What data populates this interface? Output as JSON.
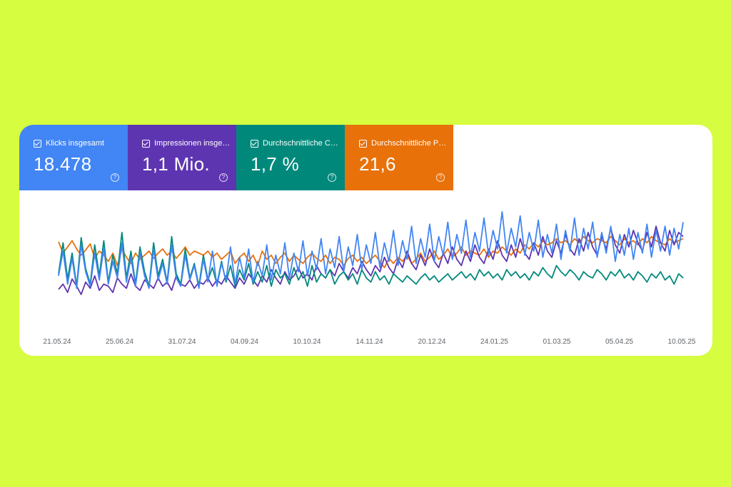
{
  "metrics": [
    {
      "label": "Klicks insgesamt",
      "value": "18.478",
      "color": "#4285f4"
    },
    {
      "label": "Impressionen insgesamt",
      "value": "1,1 Mio.",
      "color": "#5e35b1"
    },
    {
      "label": "Durchschnittliche CTR",
      "value": "1,7 %",
      "color": "#00897b"
    },
    {
      "label": "Durchschnittliche Position",
      "value": "21,6",
      "color": "#e8710a"
    }
  ],
  "help_glyph": "?",
  "chart_data": {
    "type": "line",
    "x_ticks": [
      "21.05.24",
      "25.06.24",
      "31.07.24",
      "04.09.24",
      "10.10.24",
      "14.11.24",
      "20.12.24",
      "24.01.25",
      "01.03.25",
      "05.04.25",
      "10.05.25"
    ],
    "x_range": [
      "21.05.24",
      "20.05.25"
    ],
    "grid": false,
    "legend": "none",
    "series": [
      {
        "color": "#e8710a",
        "values": [
          0.71,
          0.6,
          0.66,
          0.72,
          0.64,
          0.58,
          0.63,
          0.69,
          0.55,
          0.62,
          0.58,
          0.52,
          0.6,
          0.48,
          0.64,
          0.56,
          0.5,
          0.6,
          0.54,
          0.58,
          0.62,
          0.55,
          0.6,
          0.64,
          0.58,
          0.62,
          0.55,
          0.6,
          0.66,
          0.58,
          0.62,
          0.6,
          0.58,
          0.62,
          0.56,
          0.6,
          0.54,
          0.58,
          0.62,
          0.5,
          0.56,
          0.6,
          0.52,
          0.58,
          0.48,
          0.62,
          0.54,
          0.58,
          0.5,
          0.56,
          0.6,
          0.52,
          0.58,
          0.54,
          0.5,
          0.56,
          0.6,
          0.55,
          0.52,
          0.58,
          0.5,
          0.56,
          0.54,
          0.48,
          0.55,
          0.58,
          0.52,
          0.56,
          0.5,
          0.54,
          0.58,
          0.52,
          0.46,
          0.55,
          0.5,
          0.56,
          0.52,
          0.58,
          0.5,
          0.54,
          0.6,
          0.52,
          0.56,
          0.62,
          0.54,
          0.58,
          0.64,
          0.56,
          0.6,
          0.66,
          0.58,
          0.62,
          0.6,
          0.58,
          0.64,
          0.56,
          0.62,
          0.6,
          0.66,
          0.62,
          0.58,
          0.64,
          0.6,
          0.68,
          0.64,
          0.7,
          0.66,
          0.72,
          0.68,
          0.7,
          0.74,
          0.7,
          0.72,
          0.68,
          0.74,
          0.7,
          0.76,
          0.72,
          0.7,
          0.74,
          0.72,
          0.7,
          0.76,
          0.72,
          0.68,
          0.74,
          0.7,
          0.72,
          0.68,
          0.74,
          0.7,
          0.76,
          0.72,
          0.7,
          0.68,
          0.74,
          0.7,
          0.72,
          0.74
        ]
      },
      {
        "color": "#5e35b1",
        "values": [
          0.25,
          0.3,
          0.22,
          0.35,
          0.28,
          0.2,
          0.32,
          0.26,
          0.38,
          0.24,
          0.3,
          0.28,
          0.22,
          0.36,
          0.3,
          0.26,
          0.4,
          0.28,
          0.24,
          0.34,
          0.3,
          0.26,
          0.36,
          0.28,
          0.32,
          0.24,
          0.38,
          0.3,
          0.28,
          0.34,
          0.26,
          0.32,
          0.3,
          0.36,
          0.28,
          0.34,
          0.3,
          0.38,
          0.32,
          0.26,
          0.36,
          0.3,
          0.4,
          0.34,
          0.28,
          0.38,
          0.32,
          0.44,
          0.36,
          0.3,
          0.42,
          0.34,
          0.38,
          0.46,
          0.36,
          0.4,
          0.34,
          0.48,
          0.4,
          0.36,
          0.44,
          0.38,
          0.5,
          0.42,
          0.36,
          0.46,
          0.4,
          0.52,
          0.44,
          0.38,
          0.48,
          0.42,
          0.56,
          0.46,
          0.4,
          0.54,
          0.46,
          0.62,
          0.5,
          0.44,
          0.58,
          0.48,
          0.64,
          0.52,
          0.46,
          0.6,
          0.5,
          0.66,
          0.54,
          0.48,
          0.62,
          0.52,
          0.68,
          0.56,
          0.5,
          0.64,
          0.54,
          0.72,
          0.58,
          0.52,
          0.68,
          0.56,
          0.74,
          0.6,
          0.54,
          0.7,
          0.58,
          0.76,
          0.62,
          0.56,
          0.72,
          0.6,
          0.78,
          0.64,
          0.58,
          0.74,
          0.62,
          0.8,
          0.66,
          0.58,
          0.76,
          0.64,
          0.84,
          0.68,
          0.6,
          0.78,
          0.66,
          0.82,
          0.7,
          0.62,
          0.8,
          0.66,
          0.86,
          0.7,
          0.62,
          0.82,
          0.68,
          0.8,
          0.76
        ]
      },
      {
        "color": "#00897b",
        "values": [
          0.4,
          0.7,
          0.35,
          0.6,
          0.28,
          0.75,
          0.45,
          0.3,
          0.68,
          0.38,
          0.72,
          0.32,
          0.58,
          0.4,
          0.8,
          0.36,
          0.62,
          0.3,
          0.66,
          0.42,
          0.28,
          0.7,
          0.38,
          0.54,
          0.32,
          0.76,
          0.4,
          0.3,
          0.64,
          0.36,
          0.5,
          0.28,
          0.58,
          0.34,
          0.46,
          0.3,
          0.52,
          0.32,
          0.48,
          0.28,
          0.44,
          0.34,
          0.5,
          0.3,
          0.42,
          0.32,
          0.48,
          0.28,
          0.44,
          0.36,
          0.4,
          0.3,
          0.46,
          0.34,
          0.42,
          0.28,
          0.48,
          0.32,
          0.4,
          0.36,
          0.44,
          0.3,
          0.38,
          0.42,
          0.34,
          0.4,
          0.3,
          0.44,
          0.36,
          0.32,
          0.42,
          0.34,
          0.38,
          0.3,
          0.4,
          0.36,
          0.32,
          0.38,
          0.34,
          0.3,
          0.36,
          0.4,
          0.34,
          0.38,
          0.32,
          0.36,
          0.4,
          0.34,
          0.38,
          0.42,
          0.36,
          0.4,
          0.34,
          0.44,
          0.38,
          0.42,
          0.36,
          0.4,
          0.34,
          0.44,
          0.38,
          0.42,
          0.36,
          0.4,
          0.34,
          0.42,
          0.38,
          0.46,
          0.4,
          0.36,
          0.48,
          0.42,
          0.38,
          0.44,
          0.4,
          0.34,
          0.42,
          0.38,
          0.36,
          0.44,
          0.4,
          0.34,
          0.42,
          0.38,
          0.44,
          0.36,
          0.4,
          0.34,
          0.42,
          0.38,
          0.32,
          0.4,
          0.36,
          0.42,
          0.34,
          0.38,
          0.3,
          0.4,
          0.36
        ]
      },
      {
        "color": "#4285f4",
        "values": [
          0.38,
          0.62,
          0.3,
          0.55,
          0.26,
          0.68,
          0.42,
          0.28,
          0.6,
          0.34,
          0.65,
          0.3,
          0.52,
          0.36,
          0.7,
          0.32,
          0.56,
          0.28,
          0.6,
          0.38,
          0.26,
          0.64,
          0.34,
          0.5,
          0.3,
          0.68,
          0.36,
          0.28,
          0.58,
          0.34,
          0.48,
          0.26,
          0.54,
          0.32,
          0.62,
          0.28,
          0.5,
          0.34,
          0.66,
          0.3,
          0.56,
          0.36,
          0.64,
          0.32,
          0.52,
          0.38,
          0.68,
          0.34,
          0.58,
          0.4,
          0.7,
          0.36,
          0.6,
          0.42,
          0.72,
          0.38,
          0.62,
          0.44,
          0.74,
          0.4,
          0.64,
          0.46,
          0.76,
          0.42,
          0.66,
          0.48,
          0.78,
          0.44,
          0.68,
          0.5,
          0.8,
          0.46,
          0.7,
          0.52,
          0.82,
          0.48,
          0.72,
          0.54,
          0.86,
          0.5,
          0.74,
          0.56,
          0.88,
          0.52,
          0.76,
          0.58,
          0.9,
          0.54,
          0.78,
          0.6,
          0.92,
          0.56,
          0.8,
          0.62,
          0.94,
          0.58,
          0.82,
          0.64,
          1.0,
          0.6,
          0.84,
          0.66,
          0.96,
          0.58,
          0.8,
          0.62,
          0.92,
          0.56,
          0.78,
          0.6,
          0.88,
          0.54,
          0.82,
          0.62,
          0.94,
          0.58,
          0.84,
          0.64,
          0.9,
          0.56,
          0.8,
          0.6,
          0.86,
          0.52,
          0.78,
          0.58,
          0.84,
          0.54,
          0.8,
          0.6,
          0.88,
          0.56,
          0.82,
          0.62,
          0.86,
          0.58,
          0.84,
          0.64,
          0.9
        ]
      }
    ]
  }
}
